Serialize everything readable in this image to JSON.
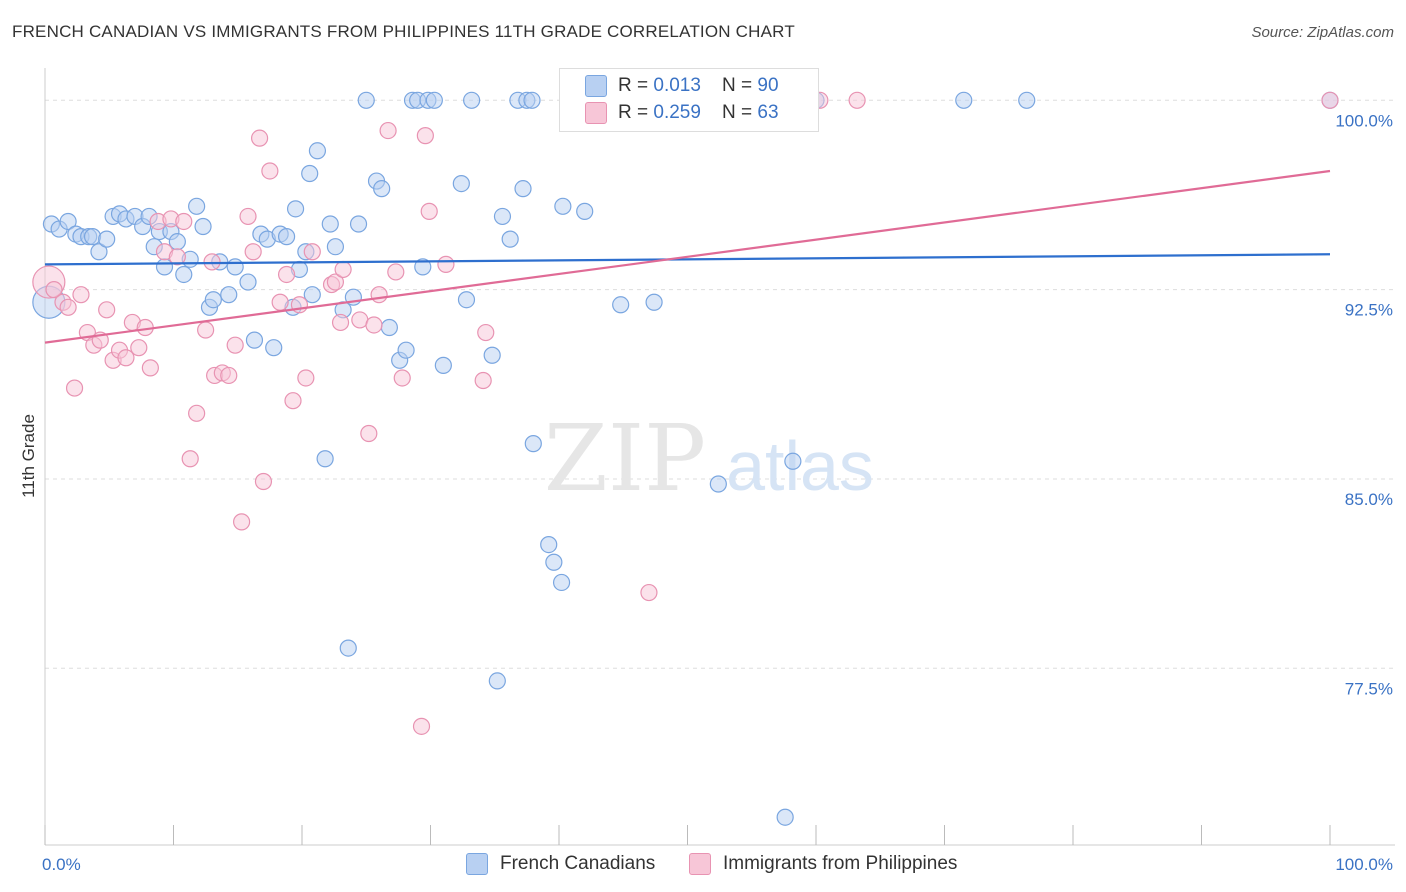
{
  "title": "FRENCH CANADIAN VS IMMIGRANTS FROM PHILIPPINES 11TH GRADE CORRELATION CHART",
  "source": "Source: ZipAtlas.com",
  "watermark": {
    "zip": "ZIP",
    "atlas": "atlas"
  },
  "legend": {
    "rows": [
      {
        "r_label": "R = ",
        "r_value": "0.013",
        "n_label": "N = ",
        "n_value": "90"
      },
      {
        "r_label": "R = ",
        "r_value": "0.259",
        "n_label": "N = ",
        "n_value": "63"
      }
    ]
  },
  "chart_data": {
    "type": "scatter",
    "title": "FRENCH CANADIAN VS IMMIGRANTS FROM PHILIPPINES 11TH GRADE CORRELATION CHART",
    "xlabel": "",
    "ylabel": "11th Grade",
    "xlim": [
      0,
      100
    ],
    "ylim": [
      70.5,
      101.2
    ],
    "x_tick_labels": [
      "0.0%",
      "100.0%"
    ],
    "y_ticks": [
      77.5,
      85.0,
      92.5,
      100.0
    ],
    "y_tick_labels": [
      "77.5%",
      "85.0%",
      "92.5%",
      "100.0%"
    ],
    "grid": true,
    "legend_position": "top-center",
    "series": [
      {
        "name": "French Canadians",
        "color": "#7aa6e0",
        "fill": "#b8d0f2",
        "line_color": "#2e6fce",
        "r": "0.013",
        "n": "90",
        "trend": {
          "x": [
            0,
            100
          ],
          "y": [
            93.5,
            93.9
          ]
        },
        "points": [
          [
            0.3,
            92.0
          ],
          [
            0.5,
            95.1
          ],
          [
            1.1,
            94.9
          ],
          [
            1.8,
            95.2
          ],
          [
            2.4,
            94.7
          ],
          [
            2.8,
            94.6
          ],
          [
            3.4,
            94.6
          ],
          [
            3.7,
            94.6
          ],
          [
            4.2,
            94.0
          ],
          [
            4.8,
            94.5
          ],
          [
            5.3,
            95.4
          ],
          [
            5.8,
            95.5
          ],
          [
            6.3,
            95.3
          ],
          [
            7.0,
            95.4
          ],
          [
            7.6,
            95.0
          ],
          [
            8.1,
            95.4
          ],
          [
            8.5,
            94.2
          ],
          [
            8.9,
            94.8
          ],
          [
            9.3,
            93.4
          ],
          [
            9.8,
            94.8
          ],
          [
            10.3,
            94.4
          ],
          [
            10.8,
            93.1
          ],
          [
            11.3,
            93.7
          ],
          [
            11.8,
            95.8
          ],
          [
            12.3,
            95.0
          ],
          [
            12.8,
            91.8
          ],
          [
            13.1,
            92.1
          ],
          [
            13.6,
            93.6
          ],
          [
            14.3,
            92.3
          ],
          [
            14.8,
            93.4
          ],
          [
            15.8,
            92.8
          ],
          [
            16.3,
            90.5
          ],
          [
            16.8,
            94.7
          ],
          [
            17.3,
            94.5
          ],
          [
            17.8,
            90.2
          ],
          [
            18.3,
            94.7
          ],
          [
            18.8,
            94.6
          ],
          [
            19.3,
            91.8
          ],
          [
            19.5,
            95.7
          ],
          [
            19.8,
            93.3
          ],
          [
            20.3,
            94.0
          ],
          [
            20.8,
            92.3
          ],
          [
            21.2,
            98.0
          ],
          [
            21.8,
            85.8
          ],
          [
            22.2,
            95.1
          ],
          [
            22.6,
            94.2
          ],
          [
            23.2,
            91.7
          ],
          [
            23.6,
            78.3
          ],
          [
            24.0,
            92.2
          ],
          [
            24.4,
            95.1
          ],
          [
            25.0,
            100.0
          ],
          [
            25.8,
            96.8
          ],
          [
            26.2,
            96.5
          ],
          [
            26.8,
            91.0
          ],
          [
            27.6,
            89.7
          ],
          [
            28.1,
            90.1
          ],
          [
            28.6,
            100.0
          ],
          [
            29.0,
            100.0
          ],
          [
            29.4,
            93.4
          ],
          [
            29.8,
            100.0
          ],
          [
            30.3,
            100.0
          ],
          [
            31.0,
            89.5
          ],
          [
            32.4,
            96.7
          ],
          [
            32.8,
            92.1
          ],
          [
            33.2,
            100.0
          ],
          [
            34.8,
            89.9
          ],
          [
            35.2,
            77.0
          ],
          [
            35.6,
            95.4
          ],
          [
            36.2,
            94.5
          ],
          [
            36.8,
            100.0
          ],
          [
            37.2,
            96.5
          ],
          [
            37.5,
            100.0
          ],
          [
            37.9,
            100.0
          ],
          [
            38.0,
            86.4
          ],
          [
            39.2,
            82.4
          ],
          [
            39.6,
            81.7
          ],
          [
            40.2,
            80.9
          ],
          [
            40.3,
            95.8
          ],
          [
            42.0,
            95.6
          ],
          [
            44.8,
            91.9
          ],
          [
            47.4,
            92.0
          ],
          [
            49.8,
            100.0
          ],
          [
            52.4,
            84.8
          ],
          [
            57.6,
            71.6
          ],
          [
            58.2,
            85.7
          ],
          [
            60.0,
            100.0
          ],
          [
            71.5,
            100.0
          ],
          [
            76.4,
            100.0
          ],
          [
            100.0,
            100.0
          ],
          [
            20.6,
            97.1
          ]
        ]
      },
      {
        "name": "Immigrants from Philippines",
        "color": "#e893b2",
        "fill": "#f7c6d7",
        "line_color": "#e06b96",
        "r": "0.259",
        "n": "63",
        "trend": {
          "x": [
            0,
            100
          ],
          "y": [
            90.4,
            97.2
          ]
        },
        "points": [
          [
            0.3,
            92.8
          ],
          [
            0.7,
            92.5
          ],
          [
            1.4,
            92.0
          ],
          [
            1.8,
            91.8
          ],
          [
            2.3,
            88.6
          ],
          [
            2.8,
            92.3
          ],
          [
            3.3,
            90.8
          ],
          [
            3.8,
            90.3
          ],
          [
            4.3,
            90.5
          ],
          [
            4.8,
            91.7
          ],
          [
            5.3,
            89.7
          ],
          [
            5.8,
            90.1
          ],
          [
            6.3,
            89.8
          ],
          [
            6.8,
            91.2
          ],
          [
            7.3,
            90.2
          ],
          [
            7.8,
            91.0
          ],
          [
            8.2,
            89.4
          ],
          [
            8.8,
            95.2
          ],
          [
            9.3,
            94.0
          ],
          [
            9.8,
            95.3
          ],
          [
            10.3,
            93.8
          ],
          [
            10.8,
            95.2
          ],
          [
            11.3,
            85.8
          ],
          [
            11.8,
            87.6
          ],
          [
            12.5,
            90.9
          ],
          [
            13.0,
            93.6
          ],
          [
            13.2,
            89.1
          ],
          [
            13.8,
            89.2
          ],
          [
            14.3,
            89.1
          ],
          [
            14.8,
            90.3
          ],
          [
            15.3,
            83.3
          ],
          [
            15.8,
            95.4
          ],
          [
            16.2,
            94.0
          ],
          [
            16.7,
            98.5
          ],
          [
            17.0,
            84.9
          ],
          [
            17.5,
            97.2
          ],
          [
            18.3,
            92.0
          ],
          [
            18.8,
            93.1
          ],
          [
            19.3,
            88.1
          ],
          [
            19.8,
            91.9
          ],
          [
            20.3,
            89.0
          ],
          [
            20.8,
            94.0
          ],
          [
            22.3,
            92.7
          ],
          [
            22.6,
            92.8
          ],
          [
            23.0,
            91.2
          ],
          [
            23.2,
            93.3
          ],
          [
            24.5,
            91.3
          ],
          [
            25.2,
            86.8
          ],
          [
            25.6,
            91.1
          ],
          [
            26.0,
            92.3
          ],
          [
            26.7,
            98.8
          ],
          [
            27.3,
            93.2
          ],
          [
            27.8,
            89.0
          ],
          [
            29.3,
            75.2
          ],
          [
            29.6,
            98.6
          ],
          [
            29.9,
            95.6
          ],
          [
            31.2,
            93.5
          ],
          [
            34.1,
            88.9
          ],
          [
            34.3,
            90.8
          ],
          [
            47.0,
            80.5
          ],
          [
            60.3,
            100.0
          ],
          [
            63.2,
            100.0
          ],
          [
            100.0,
            100.0
          ]
        ]
      }
    ]
  }
}
